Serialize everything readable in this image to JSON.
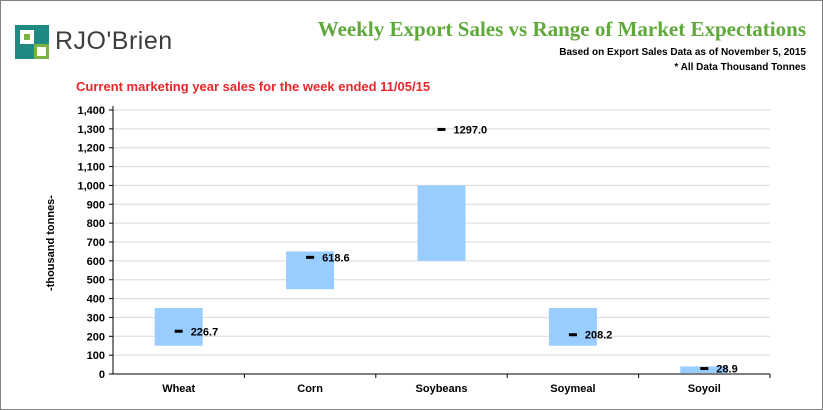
{
  "logo": {
    "text": "RJO'Brien",
    "mark": "rjobrien-logo-mark"
  },
  "header": {
    "title": "Weekly Export Sales vs Range of Market Expectations",
    "subtitle": "Based on Export Sales Data as of November 5, 2015",
    "note": "* All Data Thousand Tonnes"
  },
  "colors": {
    "title": "#5fa83a",
    "period": "#e8272a",
    "range_bar": "#99ccff",
    "actual_marker": "#000000",
    "logo_teal": "#1f8a82",
    "logo_green": "#7ab342"
  },
  "chart_data": {
    "type": "bar",
    "title": "Current marketing year sales for the week ended 11/05/15",
    "ylabel": "-thousand tonnes-",
    "xlabel": "",
    "ylim": [
      0,
      1400
    ],
    "ytick_step": 100,
    "yticks": [
      "0",
      "100",
      "200",
      "300",
      "400",
      "500",
      "600",
      "700",
      "800",
      "900",
      "1,000",
      "1,100",
      "1,200",
      "1,300",
      "1,400"
    ],
    "grid": true,
    "categories": [
      "Wheat",
      "Corn",
      "Soybeans",
      "Soymeal",
      "Soyoil"
    ],
    "series": [
      {
        "range_low": [
          150,
          450,
          600,
          150,
          5
        ],
        "range_high": [
          350,
          650,
          1000,
          350,
          40
        ]
      },
      {
        "actual": [
          226.7,
          618.6,
          1297.0,
          208.2,
          28.9
        ]
      }
    ],
    "actual_labels": [
      "226.7",
      "618.6",
      "1297.0",
      "208.2",
      "28.9"
    ]
  }
}
